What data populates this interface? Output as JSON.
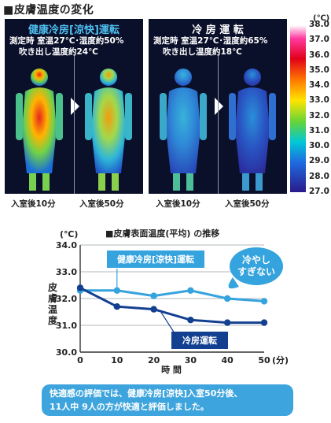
{
  "header": {
    "title": "■皮膚温度の変化"
  },
  "thermal": {
    "left": {
      "title": "健康冷房[涼快]運転",
      "line1": "測定時 室温27℃･湿度約50%",
      "line2": "吹き出し温度約24℃",
      "caption_before": "入室後10分",
      "caption_after": "入室後50分"
    },
    "right": {
      "title": "冷 房 運 転",
      "line1": "測定時 室温27℃･湿度約65%",
      "line2": "吹き出し温度約18℃",
      "caption_before": "入室後10分",
      "caption_after": "入室後50分"
    },
    "scale": {
      "unit": "(℃)",
      "ticks": [
        "38.0",
        "37.0",
        "36.0",
        "35.0",
        "34.0",
        "33.0",
        "32.0",
        "31.0",
        "30.0",
        "29.0",
        "28.0",
        "27.0"
      ]
    }
  },
  "chart_data": {
    "type": "line",
    "title": "■皮膚表面温度(平均) の推移",
    "ylabel": "皮膚温度",
    "yunit": "(℃)",
    "xlabel": "時 間",
    "xunit": "(分)",
    "x": [
      0,
      10,
      20,
      30,
      40,
      50
    ],
    "xticks": [
      "0",
      "10",
      "20",
      "30",
      "40",
      "50"
    ],
    "yticks": [
      "30.0",
      "31.0",
      "32.0",
      "33.0",
      "34.0"
    ],
    "ylim": [
      30,
      34
    ],
    "xlim": [
      0,
      50
    ],
    "series": [
      {
        "name": "健康冷房[涼快]運転",
        "values": [
          32.3,
          32.3,
          32.1,
          32.3,
          32.0,
          31.9
        ],
        "color": "#35a3dd"
      },
      {
        "name": "冷房運転",
        "values": [
          32.4,
          31.7,
          31.6,
          31.2,
          31.1,
          31.1
        ],
        "color": "#123f8f"
      }
    ],
    "callout": "冷やし すぎない"
  },
  "note": {
    "line1": "快適感の評価では、健康冷房[涼快]入室50分後、",
    "line2": "11人中 9人の方が快適と評価しました。"
  }
}
